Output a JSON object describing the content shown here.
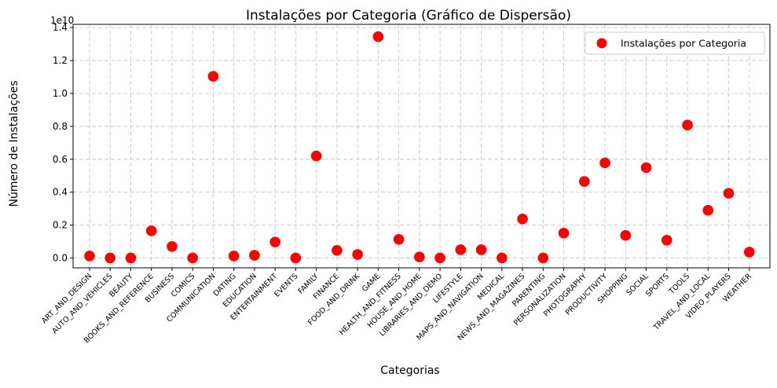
{
  "chart_data": {
    "type": "scatter",
    "title": "Instalações por Categoria (Gráfico de Dispersão)",
    "xlabel": "Categorias",
    "ylabel": "Número de Instalações",
    "offset_label": "1e10",
    "ylim": [
      -0.06,
      1.42
    ],
    "yticks": [
      0.0,
      0.2,
      0.4,
      0.6,
      0.8,
      1.0,
      1.2,
      1.4
    ],
    "ytick_labels": [
      "0.0",
      "0.2",
      "0.4",
      "0.6",
      "0.8",
      "1.0",
      "1.2",
      "1.4"
    ],
    "grid": true,
    "legend_position": "top-right",
    "marker_color": "#ff0000",
    "categories": [
      "ART_AND_DESIGN",
      "AUTO_AND_VEHICLES",
      "BEAUTY",
      "BOOKS_AND_REFERENCE",
      "BUSINESS",
      "COMICS",
      "COMMUNICATION",
      "DATING",
      "EDUCATION",
      "ENTERTAINMENT",
      "EVENTS",
      "FAMILY",
      "FINANCE",
      "FOOD_AND_DRINK",
      "GAME",
      "HEALTH_AND_FITNESS",
      "HOUSE_AND_HOME",
      "LIBRARIES_AND_DEMO",
      "LIFESTYLE",
      "MAPS_AND_NAVIGATION",
      "MEDICAL",
      "NEWS_AND_MAGAZINES",
      "PARENTING",
      "PERSONALIZATION",
      "PHOTOGRAPHY",
      "PRODUCTIVITY",
      "SHOPPING",
      "SOCIAL",
      "SPORTS",
      "TOOLS",
      "TRAVEL_AND_LOCAL",
      "VIDEO_PLAYERS",
      "WEATHER"
    ],
    "series": [
      {
        "name": "Instalações por Categoria",
        "values": [
          0.012,
          0.0,
          0.0,
          0.165,
          0.07,
          0.0,
          1.104,
          0.012,
          0.016,
          0.097,
          0.0,
          0.62,
          0.046,
          0.021,
          1.345,
          0.113,
          0.006,
          0.0,
          0.05,
          0.05,
          0.0,
          0.237,
          0.0,
          0.151,
          0.465,
          0.578,
          0.137,
          0.549,
          0.108,
          0.808,
          0.29,
          0.393,
          0.036
        ]
      }
    ]
  }
}
